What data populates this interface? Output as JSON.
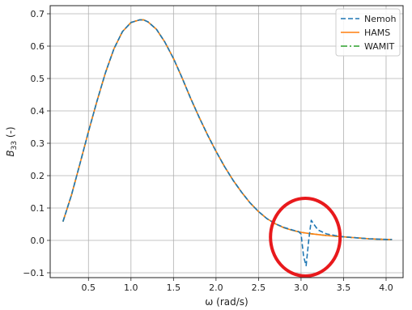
{
  "chart_data": {
    "type": "line",
    "xlabel": "ω (rad/s)",
    "ylabel_main": "B",
    "ylabel_sub": "33",
    "ylabel_suffix": " (-)",
    "xlim": [
      0.05,
      4.2
    ],
    "ylim": [
      -0.115,
      0.725
    ],
    "xticks": [
      0.5,
      1.0,
      1.5,
      2.0,
      2.5,
      3.0,
      3.5,
      4.0
    ],
    "xtick_labels": [
      "0.5",
      "1.0",
      "1.5",
      "2.0",
      "2.5",
      "3.0",
      "3.5",
      "4.0"
    ],
    "yticks": [
      -0.1,
      0.0,
      0.1,
      0.2,
      0.3,
      0.4,
      0.5,
      0.6,
      0.7
    ],
    "ytick_labels": [
      "−0.1",
      "0.0",
      "0.1",
      "0.2",
      "0.3",
      "0.4",
      "0.5",
      "0.6",
      "0.7"
    ],
    "grid": true,
    "legend_position": "top-right",
    "series": [
      {
        "name": "Nemoh",
        "color": "#1f77b4",
        "dash": "dashed",
        "x": [
          0.2,
          0.3,
          0.4,
          0.5,
          0.6,
          0.7,
          0.8,
          0.9,
          1.0,
          1.1,
          1.15,
          1.2,
          1.3,
          1.4,
          1.5,
          1.6,
          1.7,
          1.8,
          1.9,
          2.0,
          2.1,
          2.2,
          2.3,
          2.4,
          2.5,
          2.6,
          2.7,
          2.8,
          2.9,
          2.97,
          3.0,
          3.03,
          3.06,
          3.09,
          3.12,
          3.15,
          3.2,
          3.3,
          3.4,
          3.5,
          3.6,
          3.7,
          3.8,
          3.9,
          4.0,
          4.07
        ],
        "y": [
          0.058,
          0.14,
          0.237,
          0.336,
          0.43,
          0.518,
          0.592,
          0.645,
          0.673,
          0.681,
          0.681,
          0.675,
          0.652,
          0.612,
          0.562,
          0.503,
          0.44,
          0.381,
          0.326,
          0.275,
          0.228,
          0.186,
          0.149,
          0.116,
          0.089,
          0.067,
          0.051,
          0.04,
          0.032,
          0.027,
          0.02,
          -0.05,
          -0.078,
          0.0,
          0.062,
          0.05,
          0.032,
          0.02,
          0.015,
          0.011,
          0.009,
          0.007,
          0.005,
          0.004,
          0.003,
          0.003
        ]
      },
      {
        "name": "HAMS",
        "color": "#ff7f0e",
        "dash": "solid",
        "x": [
          0.2,
          0.3,
          0.4,
          0.5,
          0.6,
          0.7,
          0.8,
          0.9,
          1.0,
          1.1,
          1.15,
          1.2,
          1.3,
          1.4,
          1.5,
          1.6,
          1.7,
          1.8,
          1.9,
          2.0,
          2.1,
          2.2,
          2.3,
          2.4,
          2.5,
          2.6,
          2.7,
          2.8,
          2.9,
          3.0,
          3.1,
          3.2,
          3.3,
          3.4,
          3.5,
          3.6,
          3.7,
          3.8,
          3.9,
          4.0,
          4.07
        ],
        "y": [
          0.058,
          0.14,
          0.237,
          0.336,
          0.43,
          0.518,
          0.592,
          0.645,
          0.673,
          0.681,
          0.681,
          0.675,
          0.652,
          0.612,
          0.562,
          0.503,
          0.44,
          0.381,
          0.326,
          0.275,
          0.228,
          0.186,
          0.149,
          0.116,
          0.089,
          0.067,
          0.051,
          0.039,
          0.031,
          0.025,
          0.021,
          0.018,
          0.015,
          0.013,
          0.011,
          0.009,
          0.007,
          0.005,
          0.004,
          0.003,
          0.003
        ]
      },
      {
        "name": "WAMIT",
        "color": "#2ca02c",
        "dash": "dashdot",
        "x": [
          0.2,
          0.3,
          0.4,
          0.5,
          0.6,
          0.7,
          0.8,
          0.9,
          1.0,
          1.1,
          1.15,
          1.2,
          1.3,
          1.4,
          1.5,
          1.6,
          1.7,
          1.8,
          1.9,
          2.0,
          2.1,
          2.2,
          2.3,
          2.4,
          2.5,
          2.6,
          2.7,
          2.8,
          2.9,
          3.0,
          3.1,
          3.2,
          3.3,
          3.4,
          3.5,
          3.6,
          3.7,
          3.8,
          3.9,
          4.0,
          4.07
        ],
        "y": [
          0.058,
          0.14,
          0.237,
          0.336,
          0.43,
          0.518,
          0.592,
          0.645,
          0.673,
          0.681,
          0.681,
          0.675,
          0.652,
          0.612,
          0.562,
          0.503,
          0.44,
          0.381,
          0.326,
          0.275,
          0.228,
          0.186,
          0.149,
          0.116,
          0.089,
          0.067,
          0.051,
          0.039,
          0.031,
          0.025,
          0.021,
          0.018,
          0.015,
          0.013,
          0.011,
          0.009,
          0.007,
          0.005,
          0.004,
          0.003,
          0.003
        ]
      }
    ],
    "annotation": {
      "type": "ellipse",
      "color": "#e8191c",
      "center_data": [
        3.05,
        0.01
      ]
    }
  }
}
